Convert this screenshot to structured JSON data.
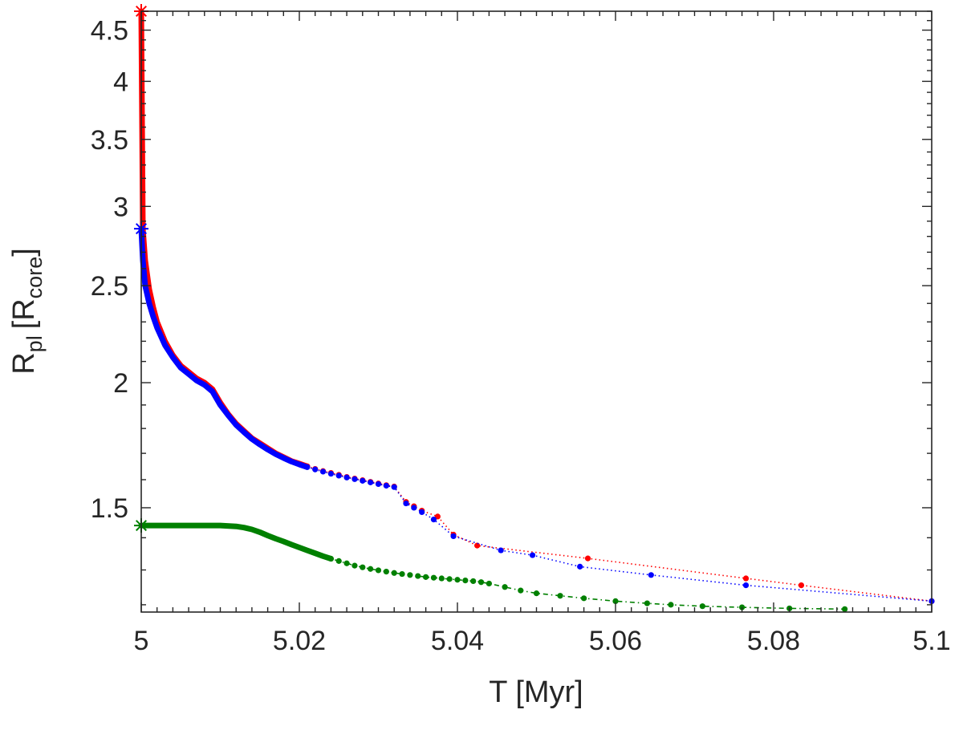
{
  "chart_data": {
    "type": "line",
    "title": "",
    "xlabel": "T [Myr]",
    "ylabel_main": "R",
    "ylabel_sub1": "pl",
    "ylabel_bracket_open": "[R",
    "ylabel_sub2": "core",
    "ylabel_bracket_close": "]",
    "xlim": [
      5.0,
      5.1
    ],
    "ylim": [
      1.18,
      4.7
    ],
    "yscale": "log",
    "grid": false,
    "xticks": [
      5.0,
      5.02,
      5.04,
      5.06,
      5.08,
      5.1
    ],
    "xtick_labels": [
      "5",
      "5.02",
      "5.04",
      "5.06",
      "5.08",
      "5.1"
    ],
    "yticks": [
      1.5,
      2.0,
      2.5,
      3.0,
      3.5,
      4.0,
      4.5
    ],
    "ytick_labels": [
      "1.5",
      "2",
      "2.5",
      "3",
      "3.5",
      "4",
      "4.5"
    ],
    "series": [
      {
        "name": "red",
        "color": "#ff0000",
        "marker": "dot",
        "line": "dotted",
        "dense_x": [
          5.0,
          5.0002,
          5.0005,
          5.001,
          5.0015,
          5.002,
          5.003,
          5.004,
          5.005,
          5.006,
          5.007,
          5.008,
          5.009,
          5.01,
          5.011,
          5.012,
          5.013,
          5.014,
          5.015,
          5.016,
          5.017,
          5.018,
          5.019,
          5.02
        ],
        "dense_y": [
          4.7,
          2.85,
          2.65,
          2.48,
          2.38,
          2.3,
          2.2,
          2.13,
          2.08,
          2.05,
          2.02,
          2.0,
          1.97,
          1.91,
          1.86,
          1.82,
          1.79,
          1.76,
          1.74,
          1.72,
          1.7,
          1.685,
          1.67,
          1.66
        ],
        "x": [
          5.021,
          5.022,
          5.023,
          5.024,
          5.025,
          5.026,
          5.027,
          5.028,
          5.029,
          5.03,
          5.031,
          5.032,
          5.0335,
          5.0345,
          5.0355,
          5.0375,
          5.0395,
          5.0425,
          5.0565,
          5.0765,
          5.0835,
          5.1
        ],
        "y": [
          1.65,
          1.64,
          1.632,
          1.625,
          1.618,
          1.61,
          1.604,
          1.598,
          1.592,
          1.586,
          1.58,
          1.575,
          1.52,
          1.505,
          1.49,
          1.47,
          1.41,
          1.375,
          1.335,
          1.275,
          1.255,
          1.21
        ]
      },
      {
        "name": "blue",
        "color": "#0000ff",
        "marker": "dot",
        "line": "dotted",
        "dense_x": [
          5.0,
          5.0002,
          5.0005,
          5.001,
          5.0015,
          5.002,
          5.003,
          5.004,
          5.005,
          5.006,
          5.007,
          5.008,
          5.009,
          5.01,
          5.011,
          5.012,
          5.013,
          5.014,
          5.015,
          5.016,
          5.017,
          5.018,
          5.019,
          5.02
        ],
        "dense_y": [
          2.85,
          2.65,
          2.5,
          2.4,
          2.33,
          2.27,
          2.18,
          2.12,
          2.07,
          2.04,
          2.01,
          1.99,
          1.96,
          1.9,
          1.855,
          1.815,
          1.785,
          1.757,
          1.735,
          1.715,
          1.697,
          1.682,
          1.668,
          1.657
        ],
        "x": [
          5.021,
          5.022,
          5.023,
          5.024,
          5.025,
          5.026,
          5.027,
          5.028,
          5.029,
          5.03,
          5.031,
          5.032,
          5.0335,
          5.0345,
          5.0355,
          5.037,
          5.0395,
          5.0455,
          5.0495,
          5.0555,
          5.0645,
          5.0765,
          5.1
        ],
        "y": [
          1.647,
          1.638,
          1.63,
          1.622,
          1.615,
          1.608,
          1.602,
          1.596,
          1.59,
          1.584,
          1.578,
          1.573,
          1.515,
          1.5,
          1.485,
          1.46,
          1.405,
          1.36,
          1.345,
          1.31,
          1.285,
          1.255,
          1.21
        ]
      },
      {
        "name": "green",
        "color": "#008000",
        "marker": "dot",
        "line": "dash-dot",
        "dense_x": [
          5.0,
          5.002,
          5.004,
          5.006,
          5.008,
          5.01,
          5.012,
          5.013,
          5.014,
          5.015,
          5.016,
          5.017,
          5.018,
          5.019,
          5.02,
          5.021,
          5.022,
          5.023
        ],
        "dense_y": [
          1.44,
          1.44,
          1.44,
          1.44,
          1.44,
          1.44,
          1.437,
          1.433,
          1.427,
          1.418,
          1.407,
          1.397,
          1.388,
          1.378,
          1.369,
          1.36,
          1.351,
          1.342
        ],
        "x": [
          5.024,
          5.025,
          5.026,
          5.027,
          5.028,
          5.029,
          5.03,
          5.031,
          5.032,
          5.033,
          5.034,
          5.035,
          5.036,
          5.037,
          5.038,
          5.039,
          5.04,
          5.041,
          5.042,
          5.043,
          5.044,
          5.046,
          5.048,
          5.05,
          5.053,
          5.056,
          5.06,
          5.064,
          5.067,
          5.071,
          5.076,
          5.082,
          5.089
        ],
        "y": [
          1.334,
          1.327,
          1.32,
          1.313,
          1.308,
          1.303,
          1.299,
          1.295,
          1.291,
          1.288,
          1.285,
          1.282,
          1.279,
          1.277,
          1.275,
          1.273,
          1.271,
          1.269,
          1.267,
          1.264,
          1.26,
          1.25,
          1.24,
          1.232,
          1.225,
          1.218,
          1.21,
          1.204,
          1.2,
          1.196,
          1.193,
          1.19,
          1.188
        ]
      }
    ],
    "start_markers": [
      {
        "name": "red-star",
        "x": 5.0,
        "y": 4.7,
        "color": "#ff0000"
      },
      {
        "name": "blue-star",
        "x": 5.0,
        "y": 2.85,
        "color": "#0000ff"
      },
      {
        "name": "green-star",
        "x": 5.0,
        "y": 1.44,
        "color": "#008000"
      }
    ]
  }
}
